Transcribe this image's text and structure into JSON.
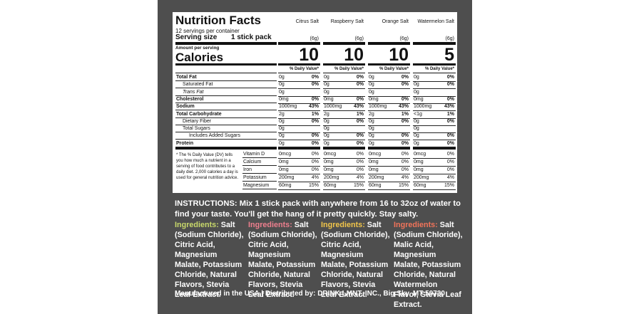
{
  "label": {
    "title": "Nutrition Facts",
    "servings": "12 servings per container",
    "serving_size_label": "Serving size",
    "serving_size_value": "1 stick pack",
    "amount_per_serving": "Amount per serving",
    "calories_label": "Calories",
    "flavors": [
      {
        "name": "Citrus Salt",
        "serving": "(6g)",
        "calories": "10",
        "dv_header": "% Daily Value*"
      },
      {
        "name": "Raspberry Salt",
        "serving": "(6g)",
        "calories": "10",
        "dv_header": "% Daily Value*"
      },
      {
        "name": "Orange Salt",
        "serving": "(6g)",
        "calories": "10",
        "dv_header": "% Daily Value*"
      },
      {
        "name": "Watermelon Salt",
        "serving": "(6g)",
        "calories": "5",
        "dv_header": "% Daily Value*"
      }
    ],
    "nutrients": [
      {
        "name": "Total Fat",
        "values": [
          [
            "0g",
            "0%"
          ],
          [
            "0g",
            "0%"
          ],
          [
            "0g",
            "0%"
          ],
          [
            "0g",
            "0%"
          ]
        ]
      },
      {
        "name": "Saturated Fat",
        "values": [
          [
            "0g",
            "0%"
          ],
          [
            "0g",
            "0%"
          ],
          [
            "0g",
            "0%"
          ],
          [
            "0g",
            "0%"
          ]
        ]
      },
      {
        "name": "Trans Fat",
        "values": [
          [
            "0g"
          ],
          [
            "0g"
          ],
          [
            "0g"
          ],
          [
            "0g"
          ]
        ]
      },
      {
        "name": "Cholesterol",
        "values": [
          [
            "0mg",
            "0%"
          ],
          [
            "0mg",
            "0%"
          ],
          [
            "0mg",
            "0%"
          ],
          [
            "0mg",
            "0%"
          ]
        ]
      },
      {
        "name": "Sodium",
        "values": [
          [
            "1000mg",
            "43%"
          ],
          [
            "1000mg",
            "43%"
          ],
          [
            "1000mg",
            "43%"
          ],
          [
            "1000mg",
            "43%"
          ]
        ]
      },
      {
        "name": "Total Carbohydrate",
        "values": [
          [
            "2g",
            "1%"
          ],
          [
            "2g",
            "1%"
          ],
          [
            "2g",
            "1%"
          ],
          [
            "<1g",
            "1%"
          ]
        ]
      },
      {
        "name": "Dietary Fiber",
        "values": [
          [
            "0g",
            "0%"
          ],
          [
            "0g",
            "0%"
          ],
          [
            "0g",
            "0%"
          ],
          [
            "0g",
            "0%"
          ]
        ]
      },
      {
        "name": "Total Sugars",
        "values": [
          [
            "0g"
          ],
          [
            "0g"
          ],
          [
            "0g"
          ],
          [
            "0g"
          ]
        ]
      },
      {
        "name": "Includes Added Sugars",
        "values": [
          [
            "0g",
            "0%"
          ],
          [
            "0g",
            "0%"
          ],
          [
            "0g",
            "0%"
          ],
          [
            "0g",
            "0%"
          ]
        ]
      },
      {
        "name": "Protein",
        "values": [
          [
            "0g",
            "0%"
          ],
          [
            "0g",
            "0%"
          ],
          [
            "0g",
            "0%"
          ],
          [
            "0g",
            "0%"
          ]
        ]
      }
    ],
    "footnote": "* The % Daily Value (DV) tells you how much a nutrient in a serving of food contributes to a daily diet. 2,000 calories a day is used for general nutrition advice.",
    "vitamins": [
      {
        "name": "Vitamin D",
        "values": [
          [
            "0mcg",
            "0%"
          ],
          [
            "0mcg",
            "0%"
          ],
          [
            "0mcg",
            "0%"
          ],
          [
            "0mcg",
            "0%"
          ]
        ]
      },
      {
        "name": "Calcium",
        "values": [
          [
            "0mg",
            "0%"
          ],
          [
            "0mg",
            "0%"
          ],
          [
            "0mg",
            "0%"
          ],
          [
            "0mg",
            "0%"
          ]
        ]
      },
      {
        "name": "Iron",
        "values": [
          [
            "0mg",
            "0%"
          ],
          [
            "0mg",
            "0%"
          ],
          [
            "0mg",
            "0%"
          ],
          [
            "0mg",
            "0%"
          ]
        ]
      },
      {
        "name": "Potassium",
        "values": [
          [
            "200mg",
            "4%"
          ],
          [
            "200mg",
            "4%"
          ],
          [
            "200mg",
            "4%"
          ],
          [
            "200mg",
            "4%"
          ]
        ]
      },
      {
        "name": "Magnesium",
        "values": [
          [
            "60mg",
            "15%"
          ],
          [
            "60mg",
            "15%"
          ],
          [
            "60mg",
            "15%"
          ],
          [
            "60mg",
            "15%"
          ]
        ]
      }
    ]
  },
  "instructions": {
    "label": "INSTRUCTIONS:",
    "text": "Mix 1 stick pack with anywhere from 16 to 32oz of water to find your taste. You'll get the hang of it pretty quickly. Stay salty."
  },
  "ingredients": [
    {
      "label": "Ingredients:",
      "text": "Salt (Sodium Chloride), Citric Acid, Magnesium Malate, Potassium Chloride, Natural Flavors, Stevia Leaf Extract."
    },
    {
      "label": "Ingredients:",
      "text": "Salt (Sodium Chloride), Citric Acid, Magnesium Malate, Potassium Chloride, Natural Flavors, Stevia Leaf Extract."
    },
    {
      "label": "Ingredients:",
      "text": "Salt (Sodium Chloride), Citric Acid, Magnesium Malate, Potassium Chloride, Natural Flavors, Stevia Leaf Extract."
    },
    {
      "label": "Ingredients:",
      "text": "Salt (Sodium Chloride), Malic Acid, Magnesium Malate, Potassium Chloride, Natural Watermelon Flavor, Stevia Leaf Extract."
    }
  ],
  "footer": "Manufactured in the USA | Distributed by: DRINK LMNT, INC., Big Sky, MT 59730"
}
